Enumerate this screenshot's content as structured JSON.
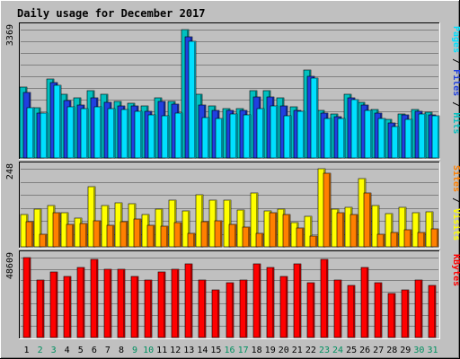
{
  "chart_data": {
    "type": "bar",
    "title": "Daily usage for December 2017",
    "colors": {
      "hits": "#00c0c0",
      "files": "#2040e0",
      "pages": "#00e0ff",
      "visits": "#ffff00",
      "sites": "#ff8000",
      "kbytes": "#ff0000",
      "weekend_day": "#009060",
      "weekday": "#000000",
      "title": "#0000a0",
      "panel_bg": "#c0c0c0"
    },
    "days": [
      "1",
      "2",
      "3",
      "4",
      "5",
      "6",
      "7",
      "8",
      "9",
      "10",
      "11",
      "12",
      "13",
      "14",
      "15",
      "16",
      "17",
      "18",
      "19",
      "20",
      "21",
      "22",
      "23",
      "24",
      "25",
      "26",
      "27",
      "28",
      "29",
      "30",
      "31"
    ],
    "weekend_days": [
      "2",
      "3",
      "9",
      "10",
      "16",
      "17",
      "23",
      "24",
      "30",
      "31"
    ],
    "panels": [
      {
        "max_label": "3369",
        "max": 3369,
        "side_labels": [
          {
            "text": "Pages",
            "color": "#00e0ff"
          },
          {
            "text": " / ",
            "color": "#000000"
          },
          {
            "text": "Files",
            "color": "#2040e0"
          },
          {
            "text": " / ",
            "color": "#000000"
          },
          {
            "text": "Hits",
            "color": "#00c0c0"
          }
        ],
        "series": [
          {
            "key": "hits",
            "values": [
              1855,
              1322,
              2083,
              1666,
              1585,
              1764,
              1666,
              1496,
              1436,
              1377,
              1584,
              1475,
              3369,
              1673,
              1377,
              1303,
              1303,
              1761,
              1761,
              1576,
              1342,
              2302,
              1256,
              1165,
              1666,
              1461,
              1283,
              1003,
              1165,
              1283,
              1210
            ]
          },
          {
            "key": "files",
            "values": [
              1724,
              1188,
              1972,
              1500,
              1379,
              1574,
              1455,
              1367,
              1357,
              1224,
              1482,
              1415,
              3190,
              1400,
              1247,
              1242,
              1254,
              1591,
              1605,
              1367,
              1255,
              2144,
              1180,
              1091,
              1571,
              1379,
              1180,
              930,
              1124,
              1227,
              1136
            ]
          },
          {
            "key": "pages",
            "values": [
              1325,
              1188,
              1901,
              1353,
              1301,
              1338,
              1302,
              1272,
              1214,
              1139,
              1109,
              1188,
              3074,
              1055,
              1032,
              1162,
              1139,
              1301,
              1366,
              1113,
              1235,
              2101,
              1032,
              1032,
              1532,
              1254,
              1032,
              835,
              1010,
              1162,
              1109
            ]
          }
        ]
      },
      {
        "max_label": "248",
        "max": 248,
        "side_labels": [
          {
            "text": "Sites",
            "color": "#ff8000"
          },
          {
            "text": " / ",
            "color": "#000000"
          },
          {
            "text": "Visits",
            "color": "#ffff00"
          }
        ],
        "series": [
          {
            "key": "visits",
            "values": [
              102,
              120,
              131,
              107,
              91,
              192,
              130,
              140,
              137,
              103,
              121,
              148,
              113,
              164,
              149,
              148,
              117,
              170,
              113,
              120,
              76,
              98,
              248,
              121,
              124,
              218,
              130,
              106,
              126,
              107,
              111
            ]
          },
          {
            "key": "sites",
            "values": [
              80,
              41,
              107,
              71,
              74,
              82,
              68,
              80,
              88,
              67,
              66,
              78,
              44,
              80,
              84,
              70,
              62,
              44,
              107,
              103,
              60,
              34,
              235,
              107,
              102,
              170,
              41,
              47,
              55,
              47,
              58
            ]
          }
        ]
      },
      {
        "max_label": "48609",
        "max": 48609,
        "side_labels": [
          {
            "text": "KBytes",
            "color": "#ff0000"
          }
        ],
        "series": [
          {
            "key": "kbytes",
            "values": [
              48609,
              34789,
              39660,
              37346,
              42570,
              47475,
              41713,
              41713,
              37346,
              34789,
              39660,
              41713,
              44852,
              34789,
              28696,
              33200,
              34789,
              44852,
              42570,
              37346,
              44852,
              33200,
              47475,
              34789,
              31549,
              42570,
              33200,
              26796,
              28696,
              34789,
              31549
            ]
          }
        ]
      }
    ]
  }
}
